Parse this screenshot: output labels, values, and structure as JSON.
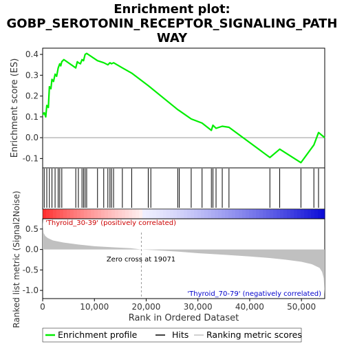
{
  "chart_data": {
    "type": "line",
    "title_lines": [
      "Enrichment plot:",
      "GOBP_SEROTONIN_RECEPTOR_SIGNALING_PATH",
      "WAY"
    ],
    "ylabel_top": "Enrichment score (ES)",
    "ylabel_bottom": "Ranked list metric (Signal2Noise)",
    "xlabel": "Rank in Ordered Dataset",
    "xlim": [
      0,
      54500
    ],
    "x_ticks": [
      0,
      10000,
      20000,
      30000,
      40000,
      50000
    ],
    "x_tick_labels": [
      "0",
      "10,000",
      "20,000",
      "30,000",
      "40,000",
      "50,000"
    ],
    "es_ylim": [
      -0.145,
      0.43
    ],
    "es_ticks": [
      -0.1,
      0.0,
      0.1,
      0.2,
      0.3,
      0.4
    ],
    "es_tick_labels": [
      "-0.1",
      "0.0",
      "0.1",
      "0.2",
      "0.3",
      "0.4"
    ],
    "metric_ylim": [
      -1.2,
      0.75
    ],
    "metric_ticks": [
      -1.0,
      -0.5,
      0.0,
      0.5
    ],
    "metric_tick_labels": [
      "-1.0",
      "-0.5",
      "0.0",
      "0.5"
    ],
    "hits": [
      300,
      800,
      1300,
      1800,
      2400,
      3000,
      3300,
      3700,
      6400,
      6900,
      7600,
      7900,
      8200,
      8500,
      10600,
      11800,
      12600,
      13000,
      13300,
      13700,
      15400,
      17200,
      20400,
      20900,
      26100,
      26400,
      28700,
      30800,
      32600,
      32900,
      33500,
      34700,
      36000,
      43900,
      45800,
      49900,
      52400,
      53300
    ],
    "series": [
      {
        "name": "Enrichment profile",
        "color": "#00ee00",
        "x": [
          0,
          300,
          600,
          800,
          1100,
          1300,
          1600,
          1800,
          2100,
          2400,
          2700,
          3000,
          3300,
          3500,
          3700,
          4100,
          6400,
          6700,
          6900,
          7300,
          7600,
          7900,
          8200,
          8500,
          10600,
          11800,
          12600,
          13000,
          13300,
          13700,
          15400,
          17200,
          20400,
          20900,
          26100,
          26400,
          28700,
          30800,
          32600,
          32900,
          33500,
          34700,
          36000,
          43900,
          45800,
          49900,
          52400,
          53300,
          54500
        ],
        "y": [
          0.11,
          0.12,
          0.1,
          0.155,
          0.145,
          0.245,
          0.235,
          0.28,
          0.27,
          0.305,
          0.295,
          0.335,
          0.355,
          0.345,
          0.365,
          0.375,
          0.335,
          0.365,
          0.36,
          0.355,
          0.375,
          0.37,
          0.4,
          0.405,
          0.37,
          0.36,
          0.35,
          0.36,
          0.355,
          0.36,
          0.335,
          0.31,
          0.25,
          0.24,
          0.135,
          0.13,
          0.09,
          0.07,
          0.035,
          0.06,
          0.045,
          0.055,
          0.05,
          -0.095,
          -0.055,
          -0.12,
          -0.035,
          0.025,
          0.0
        ]
      }
    ],
    "metric": {
      "x": [
        0,
        200,
        500,
        1000,
        2000,
        4000,
        7000,
        10000,
        14000,
        17000,
        19071,
        22000,
        26000,
        30000,
        35000,
        40000,
        44000,
        47000,
        50000,
        52000,
        53500,
        54000,
        54300,
        54500
      ],
      "y": [
        0.72,
        0.4,
        0.33,
        0.28,
        0.22,
        0.17,
        0.12,
        0.08,
        0.05,
        0.03,
        0.0,
        -0.02,
        -0.05,
        -0.09,
        -0.13,
        -0.17,
        -0.21,
        -0.25,
        -0.3,
        -0.36,
        -0.45,
        -0.55,
        -0.7,
        -1.1
      ]
    },
    "annotations": {
      "pos_label": "'Thyroid_30-39' (positively correlated)",
      "neg_label": "'Thyroid_70-79' (negatively correlated)",
      "zero_cross": "Zero cross at 19071",
      "zero_cross_x": 19071
    },
    "legend": {
      "items": [
        "Enrichment profile",
        "Hits",
        "Ranking metric scores"
      ],
      "placement": "bottom"
    },
    "colors": {
      "profile": "#00ee00",
      "hits": "#000000",
      "metric_fill": "#c0c0c0",
      "pos_label": "#cc0000",
      "neg_label": "#0000cc",
      "heat_pos": "#ff0000",
      "heat_neg": "#0000dd"
    }
  }
}
